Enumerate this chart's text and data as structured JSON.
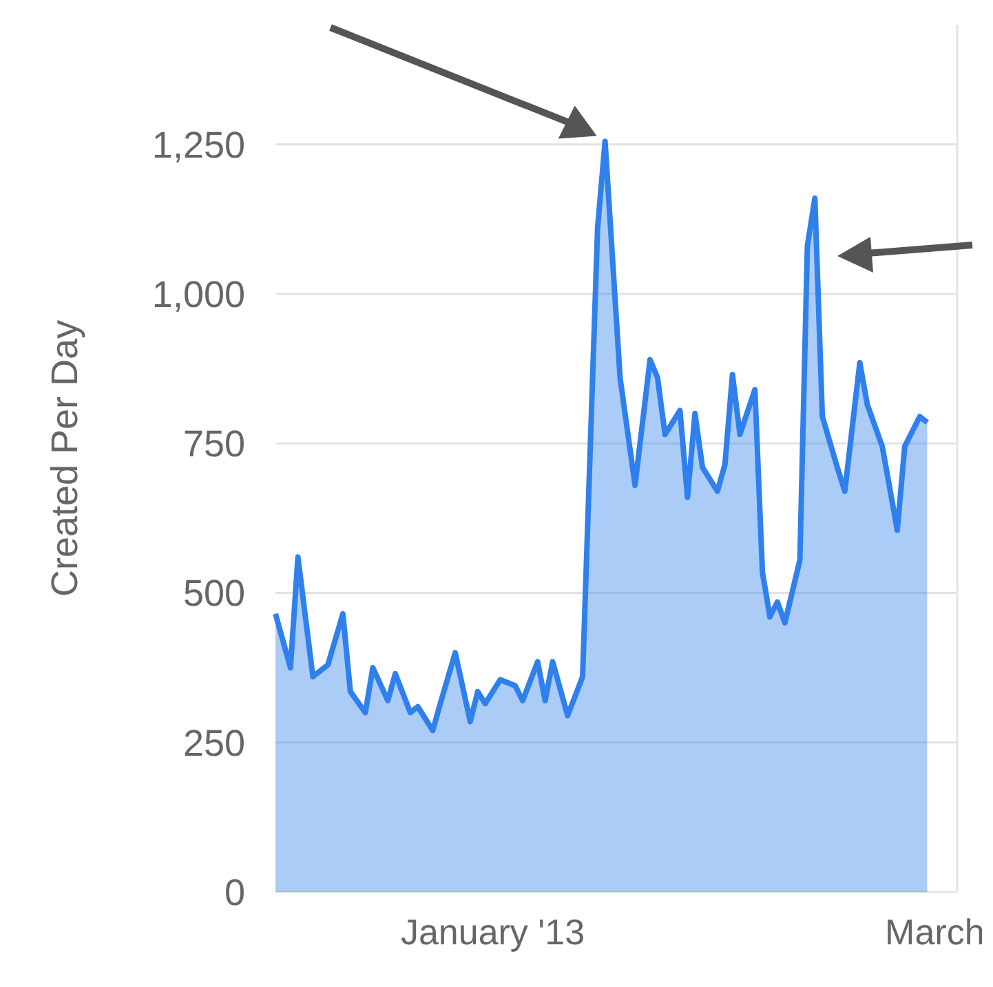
{
  "chart_data": {
    "type": "area",
    "ylabel": "Created Per Day",
    "x": [
      "2012-12-03",
      "2012-12-05",
      "2012-12-06",
      "2012-12-08",
      "2012-12-10",
      "2012-12-12",
      "2012-12-13",
      "2012-12-15",
      "2012-12-16",
      "2012-12-18",
      "2012-12-19",
      "2012-12-21",
      "2012-12-22",
      "2012-12-24",
      "2012-12-25",
      "2012-12-27",
      "2012-12-29",
      "2012-12-30",
      "2012-12-31",
      "2013-01-02",
      "2013-01-04",
      "2013-01-05",
      "2013-01-07",
      "2013-01-08",
      "2013-01-09",
      "2013-01-11",
      "2013-01-13",
      "2013-01-15",
      "2013-01-16",
      "2013-01-18",
      "2013-01-20",
      "2013-01-22",
      "2013-01-23",
      "2013-01-24",
      "2013-01-26",
      "2013-01-27",
      "2013-01-28",
      "2013-01-29",
      "2013-01-31",
      "2013-02-01",
      "2013-02-02",
      "2013-02-03",
      "2013-02-05",
      "2013-02-06",
      "2013-02-07",
      "2013-02-08",
      "2013-02-09",
      "2013-02-11",
      "2013-02-12",
      "2013-02-13",
      "2013-02-14",
      "2013-02-16",
      "2013-02-17",
      "2013-02-19",
      "2013-02-20",
      "2013-02-22",
      "2013-02-24",
      "2013-02-25",
      "2013-02-27",
      "2013-02-28"
    ],
    "series": [
      {
        "color": "#2f80ed",
        "values": [
          465,
          375,
          560,
          360,
          380,
          465,
          335,
          300,
          375,
          320,
          365,
          300,
          310,
          270,
          315,
          400,
          285,
          335,
          315,
          355,
          345,
          320,
          385,
          320,
          385,
          295,
          360,
          1110,
          1255,
          860,
          680,
          890,
          860,
          765,
          805,
          660,
          800,
          710,
          670,
          715,
          865,
          765,
          840,
          535,
          460,
          485,
          450,
          555,
          1080,
          1160,
          795,
          710,
          670,
          885,
          815,
          745,
          605,
          745,
          795,
          785
        ]
      }
    ],
    "xlim": [
      "2012-12-03",
      "2013-03-04"
    ],
    "xticks": [
      {
        "value": "2013-01-01",
        "label": "January '13"
      },
      {
        "value": "2013-03-01",
        "label": "March"
      }
    ],
    "ylim": [
      0,
      1450
    ],
    "yticks": [
      0,
      {
        "value": 250,
        "label": "250"
      },
      {
        "value": 500,
        "label": "500"
      },
      {
        "value": 750,
        "label": "750"
      },
      {
        "value": 1000,
        "label": "1,000"
      },
      {
        "value": 1250,
        "label": "1,250"
      }
    ],
    "grid": "y"
  }
}
